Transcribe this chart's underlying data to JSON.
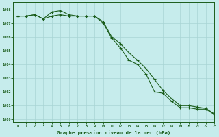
{
  "xlabel": "Graphe pression niveau de la mer (hPa)",
  "ylim": [
    999.8,
    1008.5
  ],
  "xlim": [
    -0.5,
    23
  ],
  "yticks": [
    1000,
    1001,
    1002,
    1003,
    1004,
    1005,
    1006,
    1007,
    1008
  ],
  "xticks": [
    0,
    1,
    2,
    3,
    4,
    5,
    6,
    7,
    8,
    9,
    10,
    11,
    12,
    13,
    14,
    15,
    16,
    17,
    18,
    19,
    20,
    21,
    22,
    23
  ],
  "bg_color": "#c6ecec",
  "grid_color": "#a8d4d4",
  "line_color": "#1a5c1a",
  "line1": [
    1007.5,
    1007.5,
    1007.6,
    1007.3,
    1007.8,
    1007.9,
    1007.6,
    1007.5,
    1007.5,
    1007.5,
    1007.0,
    1005.9,
    1005.2,
    1004.3,
    1004.0,
    1003.3,
    1002.0,
    1001.9,
    1001.3,
    1000.85,
    1000.85,
    1000.75,
    1000.75,
    1000.35
  ],
  "line2": [
    1007.5,
    1007.5,
    1007.6,
    1007.3,
    1007.5,
    1007.6,
    1007.5,
    1007.5,
    1007.5,
    1007.5,
    1007.1,
    1006.0,
    1005.5,
    1004.85,
    1004.3,
    1003.7,
    1002.9,
    1002.1,
    1001.5,
    1001.0,
    1001.0,
    1000.9,
    1000.8,
    1000.4
  ]
}
